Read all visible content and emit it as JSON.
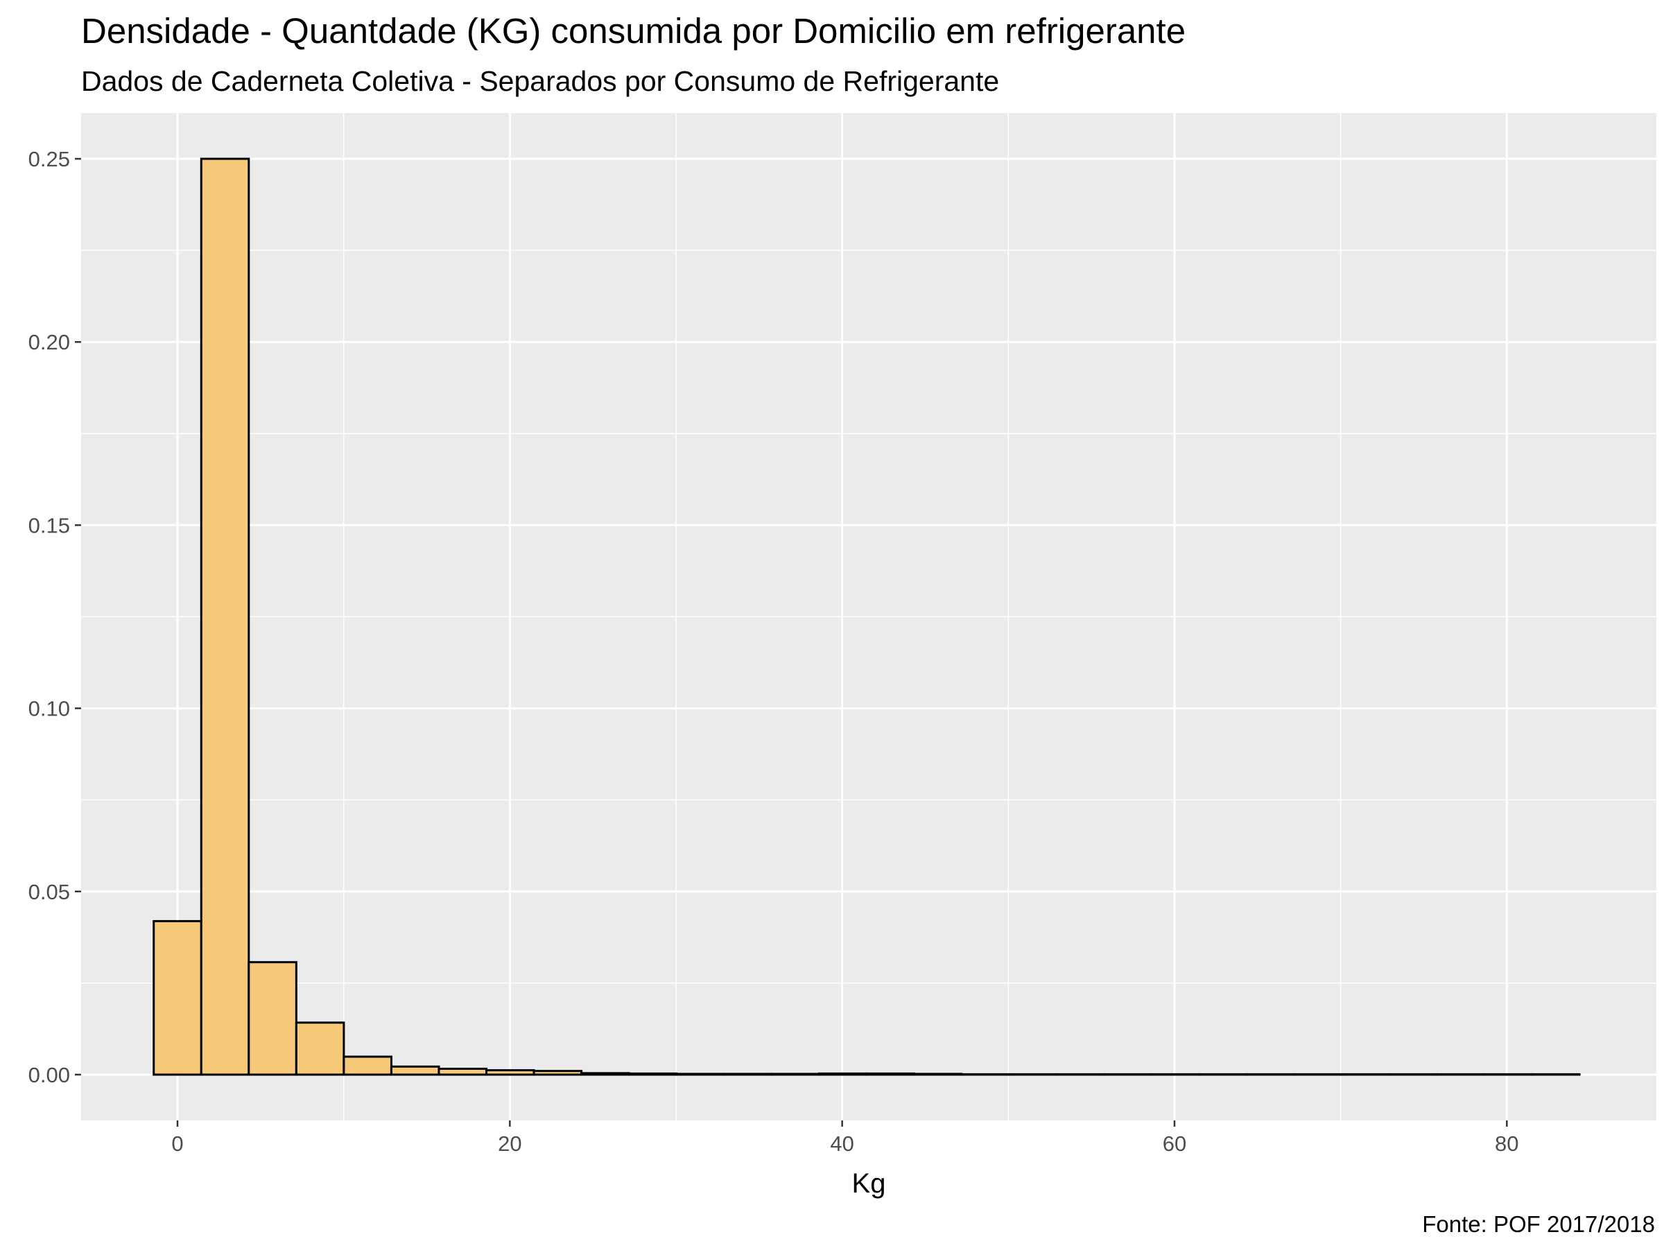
{
  "chart_data": {
    "type": "bar",
    "title": "Densidade - Quantdade (KG) consumida por Domicilio em refrigerante",
    "subtitle": "Dados de Caderneta Coletiva - Separados por Consumo de Refrigerante",
    "xlabel": "Kg",
    "ylabel": "",
    "caption": "Fonte: POF 2017/2018",
    "xlim": [
      -5.8,
      89.0
    ],
    "ylim": [
      -0.0125,
      0.2625
    ],
    "x_ticks": [
      0,
      20,
      40,
      60,
      80
    ],
    "x_tick_labels": [
      "0",
      "20",
      "40",
      "60",
      "80"
    ],
    "y_ticks": [
      0,
      0.05,
      0.1,
      0.15,
      0.2,
      0.25
    ],
    "y_tick_labels": [
      "0.00",
      "0.05",
      "0.10",
      "0.15",
      "0.20",
      "0.25"
    ],
    "grid": true,
    "colors": {
      "panel_background": "#ebebeb",
      "grid": "#ffffff",
      "bar_fill": "#f5c977",
      "bar_outline": "#000000",
      "tick_text": "#4d4d4d",
      "tick_mark": "#333333"
    },
    "bin_start": -1.43,
    "bin_width": 2.86,
    "values": [
      0.0419,
      0.25,
      0.0307,
      0.0142,
      0.0049,
      0.0022,
      0.0016,
      0.0012,
      0.001,
      0.0004,
      0.0003,
      0.0002,
      0.0002,
      0.0002,
      0.0003,
      0.0003,
      0.0002,
      0.0001,
      0.0001,
      0.0001,
      0.0001,
      0.0001,
      0.0001,
      0.0001,
      0.0001,
      0.0001,
      0.0001,
      0.0001,
      0.0001,
      0.0001
    ]
  }
}
